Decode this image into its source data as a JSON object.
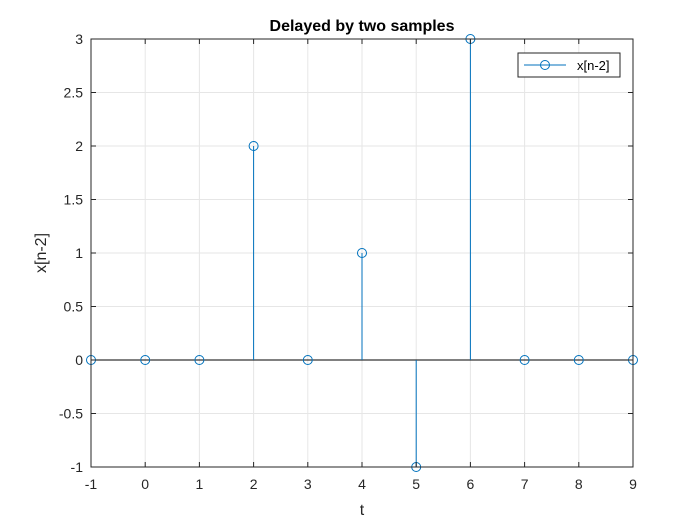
{
  "chart_data": {
    "type": "stem",
    "title": "Delayed by two samples",
    "xlabel": "t",
    "ylabel": "x[n-2]",
    "xlim": [
      -1,
      9
    ],
    "ylim": [
      -1,
      3
    ],
    "xticks": [
      "-1",
      "0",
      "1",
      "2",
      "3",
      "4",
      "5",
      "6",
      "7",
      "8",
      "9"
    ],
    "yticks": [
      "-1",
      "-0.5",
      "0",
      "0.5",
      "1",
      "1.5",
      "2",
      "2.5",
      "3"
    ],
    "grid": true,
    "legend_position": "top-right",
    "series": [
      {
        "name": "x[n-2]",
        "color": "#0072BD",
        "marker": "circle",
        "x": [
          -1,
          0,
          1,
          2,
          3,
          4,
          5,
          6,
          7,
          8,
          9
        ],
        "y": [
          0,
          0,
          0,
          2,
          0,
          1,
          -1,
          3,
          0,
          0,
          0
        ]
      }
    ]
  }
}
